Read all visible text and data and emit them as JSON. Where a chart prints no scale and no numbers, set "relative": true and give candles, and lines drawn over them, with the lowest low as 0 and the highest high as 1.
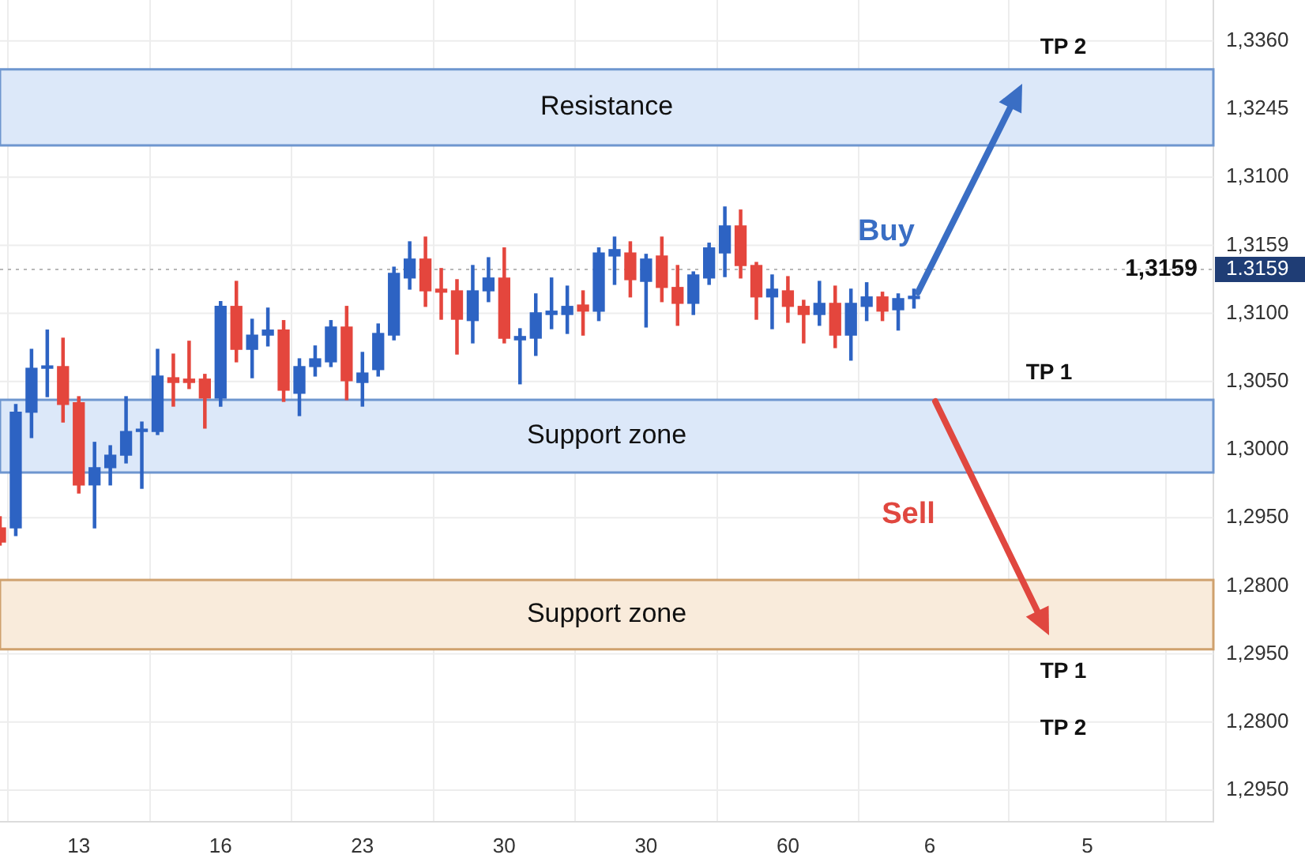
{
  "chart_data": {
    "type": "candlestick",
    "relative": true,
    "categories": [
      null,
      null,
      null,
      null,
      null,
      "13",
      null,
      null,
      null,
      null,
      null,
      null,
      null,
      null,
      "16",
      null,
      null,
      null,
      null,
      null,
      null,
      null,
      null,
      "23",
      null,
      null,
      null,
      null,
      null,
      null,
      null,
      null,
      "30",
      null,
      null,
      null,
      null,
      null,
      null,
      null,
      null,
      "30",
      null,
      null,
      null,
      null,
      null,
      null,
      null,
      null,
      "60",
      null,
      null,
      null,
      null,
      null,
      null,
      null,
      null,
      "6",
      null,
      null,
      null,
      null,
      null,
      null,
      null,
      null,
      null,
      "5",
      null,
      null,
      null,
      null,
      null,
      null,
      null,
      null
    ],
    "ylim": [
      -0.818,
      1.612
    ],
    "grid": true,
    "ohlc": [
      [
        0.051,
        0.084,
        0,
        0.009
      ],
      [
        0.051,
        0.416,
        0.028,
        0.393
      ],
      [
        0.393,
        0.579,
        0.318,
        0.523
      ],
      [
        0.523,
        0.636,
        0.439,
        0.528
      ],
      [
        0.528,
        0.612,
        0.364,
        0.416
      ],
      [
        0.421,
        0.439,
        0.154,
        0.178
      ],
      [
        0.178,
        0.304,
        0.051,
        0.229
      ],
      [
        0.229,
        0.294,
        0.178,
        0.266
      ],
      [
        0.266,
        0.439,
        0.243,
        0.336
      ],
      [
        0.336,
        0.364,
        0.168,
        0.341
      ],
      [
        0.336,
        0.579,
        0.327,
        0.5
      ],
      [
        0.495,
        0.565,
        0.411,
        0.481
      ],
      [
        0.491,
        0.603,
        0.463,
        0.481
      ],
      [
        0.491,
        0.505,
        0.346,
        0.435
      ],
      [
        0.435,
        0.72,
        0.411,
        0.706
      ],
      [
        0.706,
        0.78,
        0.542,
        0.579
      ],
      [
        0.579,
        0.668,
        0.495,
        0.621
      ],
      [
        0.621,
        0.701,
        0.589,
        0.636
      ],
      [
        0.636,
        0.664,
        0.425,
        0.458
      ],
      [
        0.449,
        0.551,
        0.383,
        0.528
      ],
      [
        0.528,
        0.589,
        0.5,
        0.551
      ],
      [
        0.542,
        0.664,
        0.528,
        0.645
      ],
      [
        0.645,
        0.706,
        0.43,
        0.486
      ],
      [
        0.481,
        0.57,
        0.411,
        0.509
      ],
      [
        0.519,
        0.654,
        0.5,
        0.626
      ],
      [
        0.621,
        0.822,
        0.607,
        0.804
      ],
      [
        0.79,
        0.897,
        0.757,
        0.846
      ],
      [
        0.846,
        0.911,
        0.706,
        0.752
      ],
      [
        0.757,
        0.818,
        0.668,
        0.748
      ],
      [
        0.752,
        0.785,
        0.565,
        0.668
      ],
      [
        0.664,
        0.827,
        0.598,
        0.752
      ],
      [
        0.752,
        0.85,
        0.72,
        0.79
      ],
      [
        0.79,
        0.879,
        0.598,
        0.612
      ],
      [
        0.607,
        0.64,
        0.477,
        0.617
      ],
      [
        0.612,
        0.743,
        0.561,
        0.687
      ],
      [
        0.682,
        0.79,
        0.64,
        0.692
      ],
      [
        0.682,
        0.766,
        0.626,
        0.706
      ],
      [
        0.71,
        0.752,
        0.621,
        0.692
      ],
      [
        0.692,
        0.879,
        0.664,
        0.864
      ],
      [
        0.855,
        0.911,
        0.771,
        0.874
      ],
      [
        0.864,
        0.897,
        0.734,
        0.785
      ],
      [
        0.78,
        0.86,
        0.645,
        0.846
      ],
      [
        0.855,
        0.911,
        0.72,
        0.762
      ],
      [
        0.762,
        0.827,
        0.65,
        0.715
      ],
      [
        0.715,
        0.808,
        0.682,
        0.799
      ],
      [
        0.79,
        0.893,
        0.771,
        0.879
      ],
      [
        0.864,
        1,
        0.794,
        0.944
      ],
      [
        0.944,
        0.991,
        0.79,
        0.827
      ],
      [
        0.827,
        0.836,
        0.668,
        0.734
      ],
      [
        0.734,
        0.799,
        0.64,
        0.757
      ],
      [
        0.752,
        0.794,
        0.659,
        0.706
      ],
      [
        0.706,
        0.724,
        0.598,
        0.682
      ],
      [
        0.682,
        0.78,
        0.65,
        0.715
      ],
      [
        0.715,
        0.766,
        0.584,
        0.621
      ],
      [
        0.621,
        0.757,
        0.547,
        0.715
      ],
      [
        0.706,
        0.776,
        0.664,
        0.734
      ],
      [
        0.734,
        0.748,
        0.664,
        0.692
      ],
      [
        0.696,
        0.743,
        0.636,
        0.729
      ],
      [
        0.729,
        0.757,
        0.701,
        0.734
      ],
      null,
      null,
      null,
      null,
      null,
      null,
      null,
      null,
      null,
      null,
      null,
      null,
      null,
      null,
      null,
      null,
      null,
      null,
      null
    ],
    "colors": [
      "#e4463d",
      "#2d63c3",
      "#2d63c3",
      "#2d63c3",
      "#e4463d",
      "#e4463d",
      "#2d63c3",
      "#2d63c3",
      "#2d63c3",
      "#2d63c3",
      "#2d63c3",
      "#e4463d",
      "#e4463d",
      "#e4463d",
      "#2d63c3",
      "#e4463d",
      "#2d63c3",
      "#2d63c3",
      "#e4463d",
      "#2d63c3",
      "#2d63c3",
      "#2d63c3",
      "#e4463d",
      "#2d63c3",
      "#2d63c3",
      "#2d63c3",
      "#2d63c3",
      "#e4463d",
      "#e4463d",
      "#e4463d",
      "#2d63c3",
      "#2d63c3",
      "#e4463d",
      "#2d63c3",
      "#2d63c3",
      "#2d63c3",
      "#2d63c3",
      "#e4463d",
      "#2d63c3",
      "#2d63c3",
      "#e4463d",
      "#2d63c3",
      "#e4463d",
      "#e4463d",
      "#2d63c3",
      "#2d63c3",
      "#2d63c3",
      "#e4463d",
      "#e4463d",
      "#2d63c3",
      "#e4463d",
      "#e4463d",
      "#2d63c3",
      "#e4463d",
      "#2d63c3",
      "#2d63c3",
      "#e4463d",
      "#2d63c3",
      "#2d63c3",
      null,
      null,
      null,
      null,
      null,
      null,
      null,
      null,
      null,
      null,
      null,
      null,
      null,
      null,
      null,
      null,
      null,
      null,
      null
    ],
    "ref_lines": [
      {
        "axis": "y",
        "value": 0.815,
        "line_style": "dotted"
      }
    ],
    "bands": [
      {
        "axis": "y",
        "from": 1.182,
        "to": 1.407,
        "label": "Resistance",
        "color": "#dce8f9"
      },
      {
        "axis": "y",
        "from": 0.215,
        "to": 0.43,
        "label": "Support zone",
        "color": "#dce8f9"
      },
      {
        "axis": "y",
        "from": -0.308,
        "to": -0.103,
        "label": "Support zone",
        "color": "#f9ebdb"
      }
    ],
    "annotations": [
      "TP 2",
      "Buy",
      "1,3159",
      "1.3159",
      "TP 1",
      "Sell",
      "TP 1",
      "TP 2",
      "1,3360",
      "1,3245",
      "1,3100",
      "1,3159",
      "1,3100",
      "1,3050",
      "1,3000",
      "1,2950",
      "1,2800",
      "1,2950",
      "1,2800",
      "1,2950"
    ]
  }
}
